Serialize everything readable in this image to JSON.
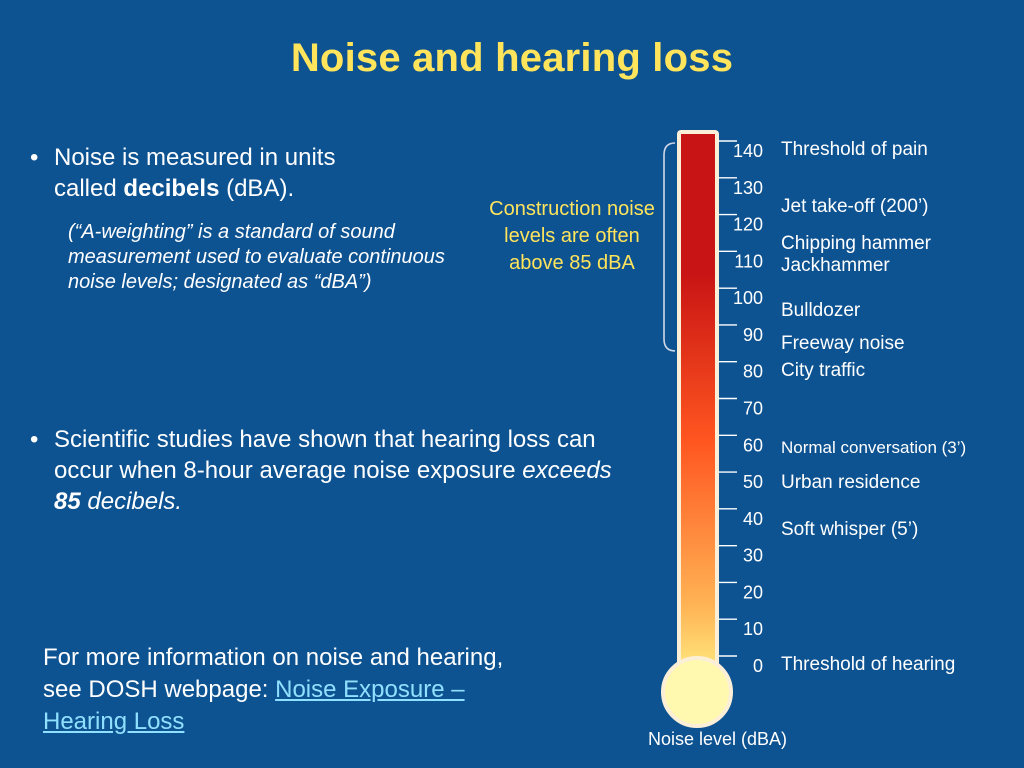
{
  "title": "Noise and hearing loss",
  "bullet1": {
    "line1": "Noise is measured in units",
    "line2_pre": "called ",
    "line2_bold": "decibels",
    "line2_post": " (dBA)."
  },
  "note": "(“A-weighting” is a standard of sound measurement used to evaluate continuous noise levels; designated as “dBA”)",
  "bullet2": {
    "text": "Scientific studies have shown that hearing loss can occur when 8-hour average noise exposure ",
    "em1": "exceeds ",
    "em_bold": "85",
    "em2": " decibels."
  },
  "bullet_symbol": "•",
  "construction_note": "Construction noise levels are often above 85 dBA",
  "footer": {
    "text": "For more information on noise and hearing, see DOSH webpage: ",
    "link_text": "Noise Exposure – Hearing Loss"
  },
  "chart_data": {
    "type": "thermometer",
    "ylabel": "Noise level (dBA)",
    "ylim": [
      0,
      140
    ],
    "ticks": [
      0,
      10,
      20,
      30,
      40,
      50,
      60,
      70,
      80,
      90,
      100,
      110,
      120,
      130,
      140
    ],
    "annotations": [
      {
        "label": "Threshold of pain",
        "value": 140
      },
      {
        "label": "Jet take-off (200’)",
        "value": 130
      },
      {
        "label": "Chipping hammer",
        "value": 120
      },
      {
        "label": "Jackhammer",
        "value": 110
      },
      {
        "label": "Bulldozer",
        "value": 100
      },
      {
        "label": "Freeway noise",
        "value": 90
      },
      {
        "label": "City traffic",
        "value": 80
      },
      {
        "label": "Normal conversation (3’)",
        "value": 60
      },
      {
        "label": "Urban residence",
        "value": 50
      },
      {
        "label": "Soft whisper (5’)",
        "value": 40
      },
      {
        "label": "Threshold of hearing",
        "value": 0
      }
    ],
    "bracket_range": [
      90,
      140
    ],
    "colors": {
      "hot": "#c81414",
      "mid": "#ff5520",
      "warm": "#ffb455",
      "cool": "#fff78a",
      "bulb": "#fff9b0"
    }
  }
}
